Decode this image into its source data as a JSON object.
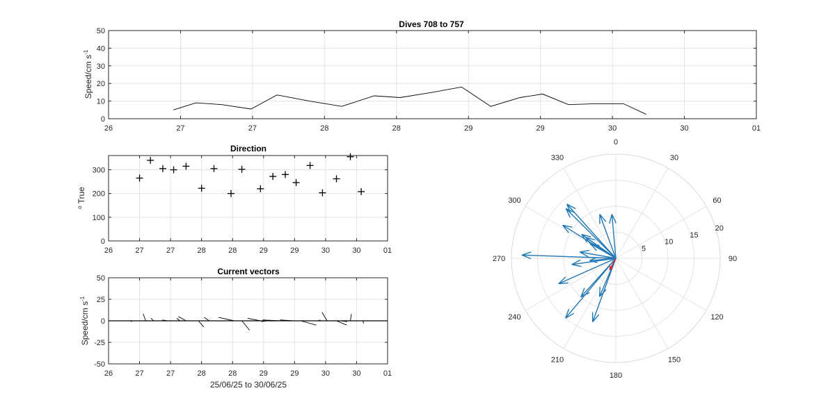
{
  "chart_data": [
    {
      "id": "speed",
      "type": "line",
      "title": "Dives 708 to 757",
      "ylabel": "Speed/cm s",
      "ylabel_sup": "-1",
      "ylim": [
        0,
        50
      ],
      "yticks": [
        0,
        10,
        20,
        30,
        40,
        50
      ],
      "xlim": [
        0,
        10
      ],
      "xtick_labels": [
        "26",
        "27",
        "27",
        "28",
        "28",
        "29",
        "29",
        "30",
        "30",
        "01"
      ],
      "grid": true,
      "color": "#000000",
      "x": [
        1.0,
        1.35,
        1.75,
        2.2,
        2.6,
        3.1,
        3.6,
        4.1,
        4.5,
        5.0,
        5.45,
        5.9,
        6.35,
        6.7,
        7.1,
        7.5,
        7.95,
        8.3
      ],
      "y": [
        5,
        9,
        8,
        5.5,
        13.5,
        10,
        7,
        13,
        12,
        15,
        18,
        7,
        12,
        14,
        8,
        8.5,
        8.5,
        2.5
      ]
    },
    {
      "id": "direction",
      "type": "scatter",
      "title": "Direction",
      "ylabel": "True",
      "ylabel_pre": "o",
      "ylim": [
        0,
        360
      ],
      "yticks": [
        0,
        100,
        200,
        300
      ],
      "xlim": [
        0,
        9
      ],
      "xtick_labels": [
        "26",
        "27",
        "27",
        "28",
        "28",
        "29",
        "29",
        "30",
        "30",
        "01"
      ],
      "grid": true,
      "marker": "+",
      "x": [
        1.0,
        1.35,
        1.75,
        2.1,
        2.5,
        3.0,
        3.4,
        3.95,
        4.3,
        4.9,
        5.3,
        5.7,
        6.05,
        6.5,
        6.9,
        7.35,
        7.8,
        8.15
      ],
      "y": [
        265,
        340,
        305,
        300,
        315,
        222,
        305,
        200,
        302,
        220,
        272,
        280,
        246,
        318,
        203,
        262,
        355,
        208
      ]
    },
    {
      "id": "vectors",
      "type": "quiver",
      "title": "Current vectors",
      "ylabel": "Speed/cm s",
      "ylabel_sup": "-1",
      "xlabel": "25/06/25 to 30/06/25",
      "ylim": [
        -50,
        50
      ],
      "yticks": [
        -50,
        -25,
        0,
        25,
        50
      ],
      "xlim": [
        0,
        9
      ],
      "xtick_labels": [
        "26",
        "27",
        "27",
        "28",
        "28",
        "29",
        "29",
        "30",
        "30",
        "01"
      ],
      "grid": true,
      "color": "#000000",
      "x": [
        0.7,
        1.2,
        1.45,
        1.9,
        2.3,
        2.5,
        2.9,
        3.25,
        3.55,
        4.05,
        4.3,
        4.9,
        5.1,
        5.55,
        5.95,
        6.2,
        6.75,
        7.05,
        7.35,
        7.5,
        7.65,
        7.8,
        8.2
      ],
      "u": [
        3,
        -5,
        -5,
        -10,
        -6,
        -15,
        10,
        -10,
        -20,
        -30,
        15,
        -25,
        -10,
        -35,
        -25,
        30,
        5,
        -10,
        20,
        12,
        5,
        2,
        2
      ],
      "v": [
        -1,
        8,
        3,
        1,
        3,
        5,
        -7,
        4,
        0,
        4,
        -11,
        3,
        -1,
        1,
        1,
        -5,
        1,
        10,
        -5,
        -1,
        0,
        8,
        -3
      ]
    },
    {
      "id": "polar",
      "type": "compass",
      "theta_labels": [
        "0",
        "30",
        "60",
        "90",
        "120",
        "150",
        "180",
        "210",
        "240",
        "270",
        "300",
        "330"
      ],
      "r_labels": [
        "5",
        "10",
        "15",
        "20"
      ],
      "rlim": [
        0,
        20
      ],
      "vector_color": "#1f77b4",
      "highlight_color": "#d62728",
      "vectors": [
        {
          "dir": 265,
          "speed": 5
        },
        {
          "dir": 340,
          "speed": 9
        },
        {
          "dir": 305,
          "speed": 8
        },
        {
          "dir": 300,
          "speed": 5.5
        },
        {
          "dir": 315,
          "speed": 13.5
        },
        {
          "dir": 222,
          "speed": 10
        },
        {
          "dir": 305,
          "speed": 7
        },
        {
          "dir": 200,
          "speed": 13
        },
        {
          "dir": 302,
          "speed": 12
        },
        {
          "dir": 220,
          "speed": 15
        },
        {
          "dir": 272,
          "speed": 18
        },
        {
          "dir": 280,
          "speed": 7
        },
        {
          "dir": 246,
          "speed": 12
        },
        {
          "dir": 318,
          "speed": 14
        },
        {
          "dir": 203,
          "speed": 8
        },
        {
          "dir": 262,
          "speed": 8.5
        },
        {
          "dir": 355,
          "speed": 8.5
        },
        {
          "dir": 208,
          "speed": 2.5
        }
      ],
      "highlight_index": 17
    }
  ]
}
